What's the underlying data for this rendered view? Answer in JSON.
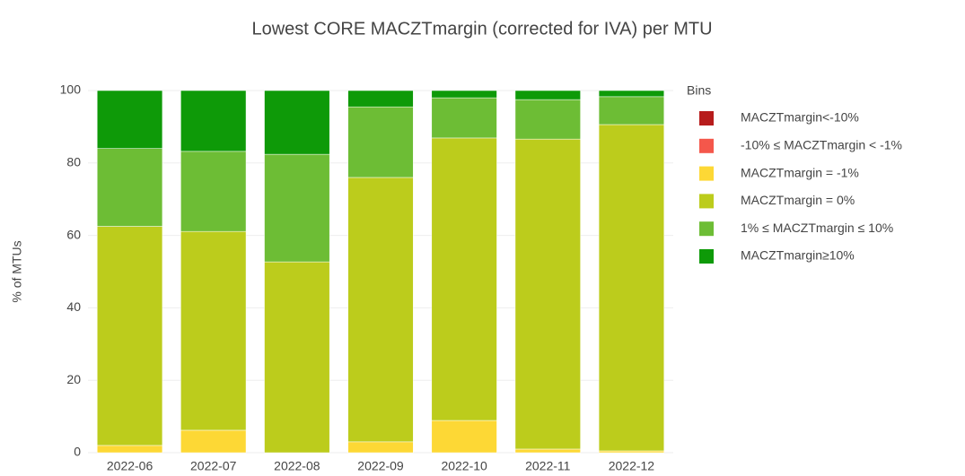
{
  "chart_data": {
    "type": "stacked-bar",
    "title": "Lowest CORE MACZTmargin (corrected for IVA) per MTU",
    "y_label": "% of MTUs",
    "legend_title": "Bins",
    "legend": "right",
    "grid": true,
    "categories": [
      "2022-06",
      "2022-07",
      "2022-08",
      "2022-09",
      "2022-10",
      "2022-11",
      "2022-12"
    ],
    "ylim": [
      0,
      100
    ],
    "yticks": [
      0,
      20,
      40,
      60,
      80,
      100
    ],
    "series": [
      {
        "name": "MACZTmargin<-10%",
        "color": "#b71c1c",
        "values": [
          0,
          0,
          0,
          0,
          0,
          0,
          0
        ]
      },
      {
        "name": "-10% ≤ MACZTmargin < -1%",
        "color": "#f4574b",
        "values": [
          0,
          0,
          0,
          0,
          0,
          0,
          0
        ]
      },
      {
        "name": "MACZTmargin = -1%",
        "color": "#fdd835",
        "values": [
          2,
          6.2,
          0,
          3,
          8.9,
          1,
          0.5
        ]
      },
      {
        "name": "MACZTmargin = 0%",
        "color": "#bccc1c",
        "values": [
          60.5,
          54.9,
          52.7,
          73,
          78,
          85.6,
          90.1
        ]
      },
      {
        "name": "1% ≤ MACZTmargin ≤ 10%",
        "color": "#6dbd35",
        "values": [
          21.5,
          22.1,
          29.7,
          19.5,
          11.1,
          10.9,
          7.7
        ]
      },
      {
        "name": "MACZTmargin≥10%",
        "color": "#0e9a08",
        "values": [
          16,
          16.8,
          17.6,
          4.5,
          2,
          2.5,
          1.7
        ]
      }
    ]
  }
}
